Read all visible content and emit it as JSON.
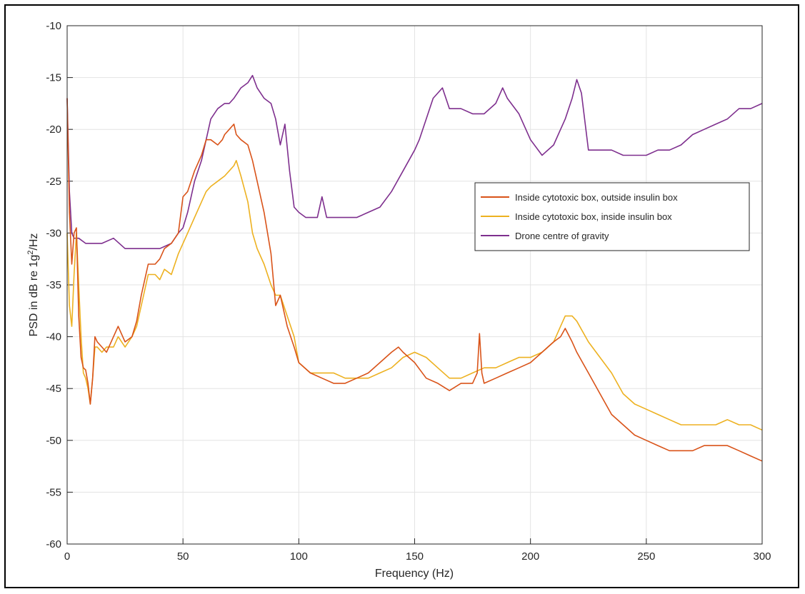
{
  "chart_data": {
    "type": "line",
    "title": "",
    "xlabel": "Frequency (Hz)",
    "ylabel_prefix": "PSD in dB re 1g",
    "ylabel_sup": "2",
    "ylabel_suffix": "/Hz",
    "xlim": [
      0,
      300
    ],
    "ylim": [
      -60,
      -10
    ],
    "xticks": [
      0,
      50,
      100,
      150,
      200,
      250,
      300
    ],
    "yticks": [
      -60,
      -55,
      -50,
      -45,
      -40,
      -35,
      -30,
      -25,
      -20,
      -15,
      -10
    ],
    "grid": true,
    "legend_position": "right-upper",
    "series": [
      {
        "name": "Inside cytotoxic box, outside insulin box",
        "color": "#d95319",
        "x": [
          0,
          1,
          2,
          3,
          4,
          5,
          6,
          7,
          8,
          9,
          10,
          11,
          12,
          13,
          15,
          17,
          20,
          22,
          25,
          28,
          30,
          32,
          35,
          38,
          40,
          42,
          45,
          48,
          50,
          52,
          55,
          58,
          60,
          62,
          65,
          67,
          68,
          70,
          72,
          73,
          75,
          78,
          80,
          82,
          85,
          88,
          90,
          92,
          95,
          98,
          100,
          105,
          110,
          115,
          120,
          125,
          130,
          135,
          140,
          143,
          145,
          150,
          155,
          160,
          165,
          170,
          175,
          177,
          178,
          179,
          180,
          185,
          190,
          195,
          200,
          205,
          210,
          213,
          215,
          218,
          220,
          225,
          230,
          235,
          240,
          245,
          250,
          255,
          260,
          265,
          270,
          275,
          280,
          285,
          290,
          295,
          300
        ],
        "y": [
          -17,
          -28,
          -33,
          -30,
          -29.5,
          -38,
          -42,
          -43,
          -43.2,
          -44.5,
          -46.5,
          -44,
          -40,
          -40.5,
          -41,
          -41.5,
          -40,
          -39,
          -40.5,
          -40,
          -38.5,
          -36,
          -33,
          -33,
          -32.5,
          -31.5,
          -31,
          -30,
          -26.5,
          -26,
          -24,
          -22.5,
          -21,
          -21,
          -21.5,
          -21,
          -20.5,
          -20,
          -19.5,
          -20.5,
          -21,
          -21.5,
          -23,
          -25,
          -28,
          -32,
          -37,
          -36,
          -39,
          -41,
          -42.5,
          -43.5,
          -44,
          -44.5,
          -44.5,
          -44,
          -43.5,
          -42.5,
          -41.5,
          -41,
          -41.5,
          -42.5,
          -44,
          -44.5,
          -45.2,
          -44.5,
          -44.5,
          -43.5,
          -39.7,
          -43.5,
          -44.5,
          -44,
          -43.5,
          -43,
          -42.5,
          -41.5,
          -40.5,
          -40,
          -39.2,
          -40.5,
          -41.5,
          -43.5,
          -45.5,
          -47.5,
          -48.5,
          -49.5,
          -50,
          -50.5,
          -51,
          -51,
          -51,
          -50.5,
          -50.5,
          -50.5,
          -51,
          -51.5,
          -52
        ]
      },
      {
        "name": "Inside cytotoxic box, inside insulin box",
        "color": "#edb120",
        "x": [
          0,
          1,
          2,
          3,
          4,
          5,
          6,
          7,
          8,
          9,
          10,
          11,
          12,
          13,
          15,
          17,
          20,
          22,
          25,
          28,
          30,
          32,
          35,
          38,
          40,
          42,
          45,
          48,
          50,
          52,
          55,
          58,
          60,
          62,
          65,
          68,
          70,
          72,
          73,
          75,
          78,
          80,
          82,
          85,
          88,
          90,
          92,
          95,
          98,
          100,
          105,
          110,
          115,
          120,
          125,
          130,
          135,
          140,
          145,
          150,
          155,
          160,
          165,
          170,
          175,
          180,
          185,
          190,
          195,
          200,
          205,
          210,
          213,
          215,
          218,
          220,
          225,
          230,
          235,
          240,
          245,
          250,
          255,
          260,
          265,
          270,
          275,
          280,
          285,
          290,
          295,
          300
        ],
        "y": [
          -30,
          -37,
          -39,
          -34,
          -30,
          -35,
          -40,
          -43.5,
          -44,
          -45,
          -46.5,
          -44,
          -41,
          -41,
          -41.5,
          -41,
          -41,
          -40,
          -41,
          -40,
          -39,
          -37,
          -34,
          -34,
          -34.5,
          -33.5,
          -34,
          -32,
          -31,
          -30,
          -28.5,
          -27,
          -26,
          -25.5,
          -25,
          -24.5,
          -24,
          -23.5,
          -23,
          -24.5,
          -27,
          -30,
          -31.5,
          -33,
          -35,
          -36,
          -36,
          -38,
          -40,
          -42.5,
          -43.5,
          -43.5,
          -43.5,
          -44,
          -44,
          -44,
          -43.5,
          -43,
          -42,
          -41.5,
          -42,
          -43,
          -44,
          -44,
          -43.5,
          -43,
          -43,
          -42.5,
          -42,
          -42,
          -41.5,
          -40.5,
          -39,
          -38,
          -38,
          -38.5,
          -40.5,
          -42,
          -43.5,
          -45.5,
          -46.5,
          -47,
          -47.5,
          -48,
          -48.5,
          -48.5,
          -48.5,
          -48.5,
          -48,
          -48.5,
          -48.5,
          -49
        ]
      },
      {
        "name": "Drone centre of gravity",
        "color": "#7e2f8e",
        "x": [
          0,
          1,
          2,
          3,
          5,
          8,
          10,
          15,
          20,
          25,
          30,
          35,
          40,
          45,
          48,
          50,
          52,
          55,
          58,
          60,
          62,
          65,
          68,
          70,
          72,
          75,
          78,
          80,
          82,
          85,
          88,
          90,
          92,
          94,
          96,
          98,
          100,
          103,
          105,
          108,
          110,
          112,
          115,
          120,
          125,
          130,
          135,
          140,
          145,
          150,
          152,
          155,
          158,
          160,
          162,
          165,
          170,
          175,
          180,
          185,
          188,
          190,
          195,
          200,
          205,
          210,
          213,
          215,
          218,
          220,
          222,
          225,
          230,
          235,
          240,
          245,
          250,
          255,
          260,
          265,
          270,
          275,
          280,
          285,
          290,
          295,
          300
        ],
        "y": [
          -17,
          -26,
          -30,
          -30.5,
          -30.5,
          -31,
          -31,
          -31,
          -30.5,
          -31.5,
          -31.5,
          -31.5,
          -31.5,
          -31,
          -30,
          -29.5,
          -28,
          -25,
          -23,
          -21,
          -19,
          -18,
          -17.5,
          -17.5,
          -17,
          -16,
          -15.5,
          -14.8,
          -16,
          -17,
          -17.5,
          -19,
          -21.5,
          -19.5,
          -24,
          -27.5,
          -28,
          -28.5,
          -28.5,
          -28.5,
          -26.5,
          -28.5,
          -28.5,
          -28.5,
          -28.5,
          -28,
          -27.5,
          -26,
          -24,
          -22,
          -21,
          -19,
          -17,
          -16.5,
          -16,
          -18,
          -18,
          -18.5,
          -18.5,
          -17.5,
          -16,
          -17,
          -18.5,
          -21,
          -22.5,
          -21.5,
          -20,
          -19,
          -17,
          -15.2,
          -16.5,
          -22,
          -22,
          -22,
          -22.5,
          -22.5,
          -22.5,
          -22,
          -22,
          -21.5,
          -20.5,
          -20,
          -19.5,
          -19,
          -18,
          -18,
          -17.5
        ]
      }
    ]
  }
}
